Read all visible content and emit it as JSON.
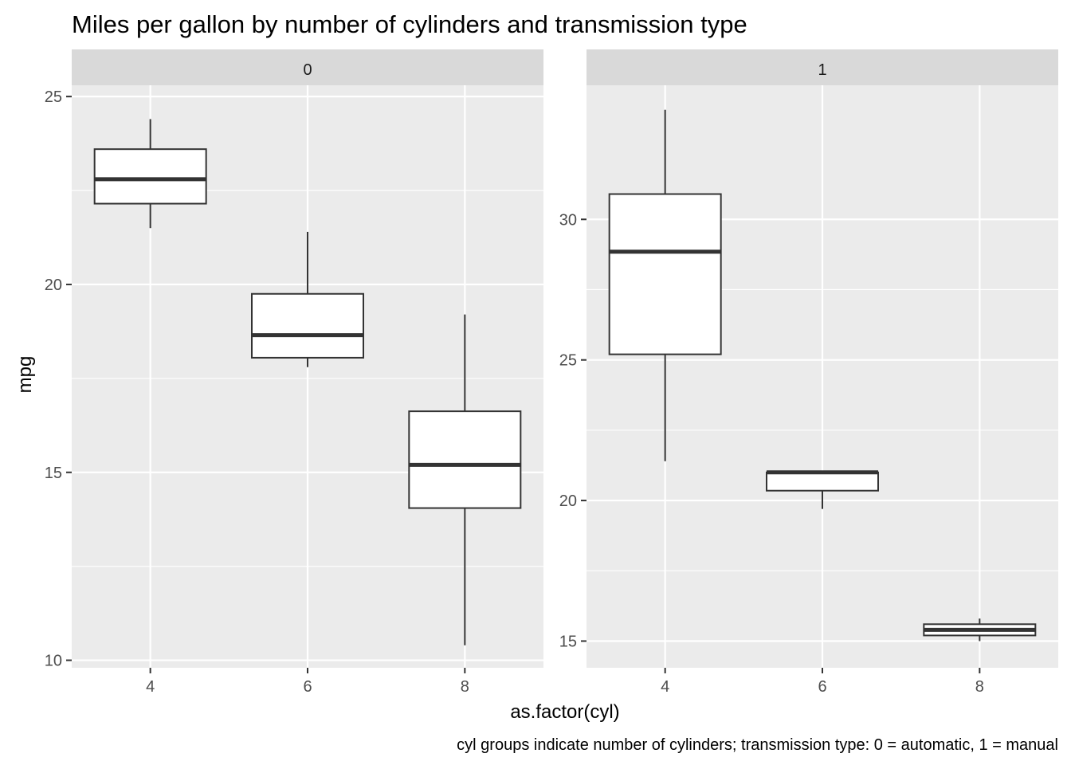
{
  "chart_data": {
    "type": "boxplot",
    "title": "Miles per gallon by number of cylinders and transmission type",
    "xlabel": "as.factor(cyl)",
    "ylabel": "mpg",
    "caption": "cyl groups indicate number of cylinders; transmission type: 0 = automatic, 1 = manual",
    "categories": [
      "4",
      "6",
      "8"
    ],
    "facets": [
      {
        "label": "0",
        "ylim": [
          9.8,
          25.3
        ],
        "yticks": [
          10,
          15,
          20,
          25
        ],
        "boxes": [
          {
            "category": "4",
            "min": 21.5,
            "q1": 22.15,
            "median": 22.8,
            "q3": 23.6,
            "max": 24.4
          },
          {
            "category": "6",
            "min": 17.8,
            "q1": 18.05,
            "median": 18.65,
            "q3": 19.75,
            "max": 21.4
          },
          {
            "category": "8",
            "min": 10.4,
            "q1": 14.05,
            "median": 15.2,
            "q3": 16.625,
            "max": 19.2
          }
        ]
      },
      {
        "label": "1",
        "ylim": [
          14.05,
          34.77
        ],
        "yticks": [
          15,
          20,
          25,
          30
        ],
        "boxes": [
          {
            "category": "4",
            "min": 21.4,
            "q1": 25.2,
            "median": 28.85,
            "q3": 30.9,
            "max": 33.9
          },
          {
            "category": "6",
            "min": 19.7,
            "q1": 20.35,
            "median": 21.0,
            "q3": 21.0,
            "max": 21.0
          },
          {
            "category": "8",
            "min": 15.0,
            "q1": 15.2,
            "median": 15.4,
            "q3": 15.6,
            "max": 15.8
          }
        ]
      }
    ]
  }
}
